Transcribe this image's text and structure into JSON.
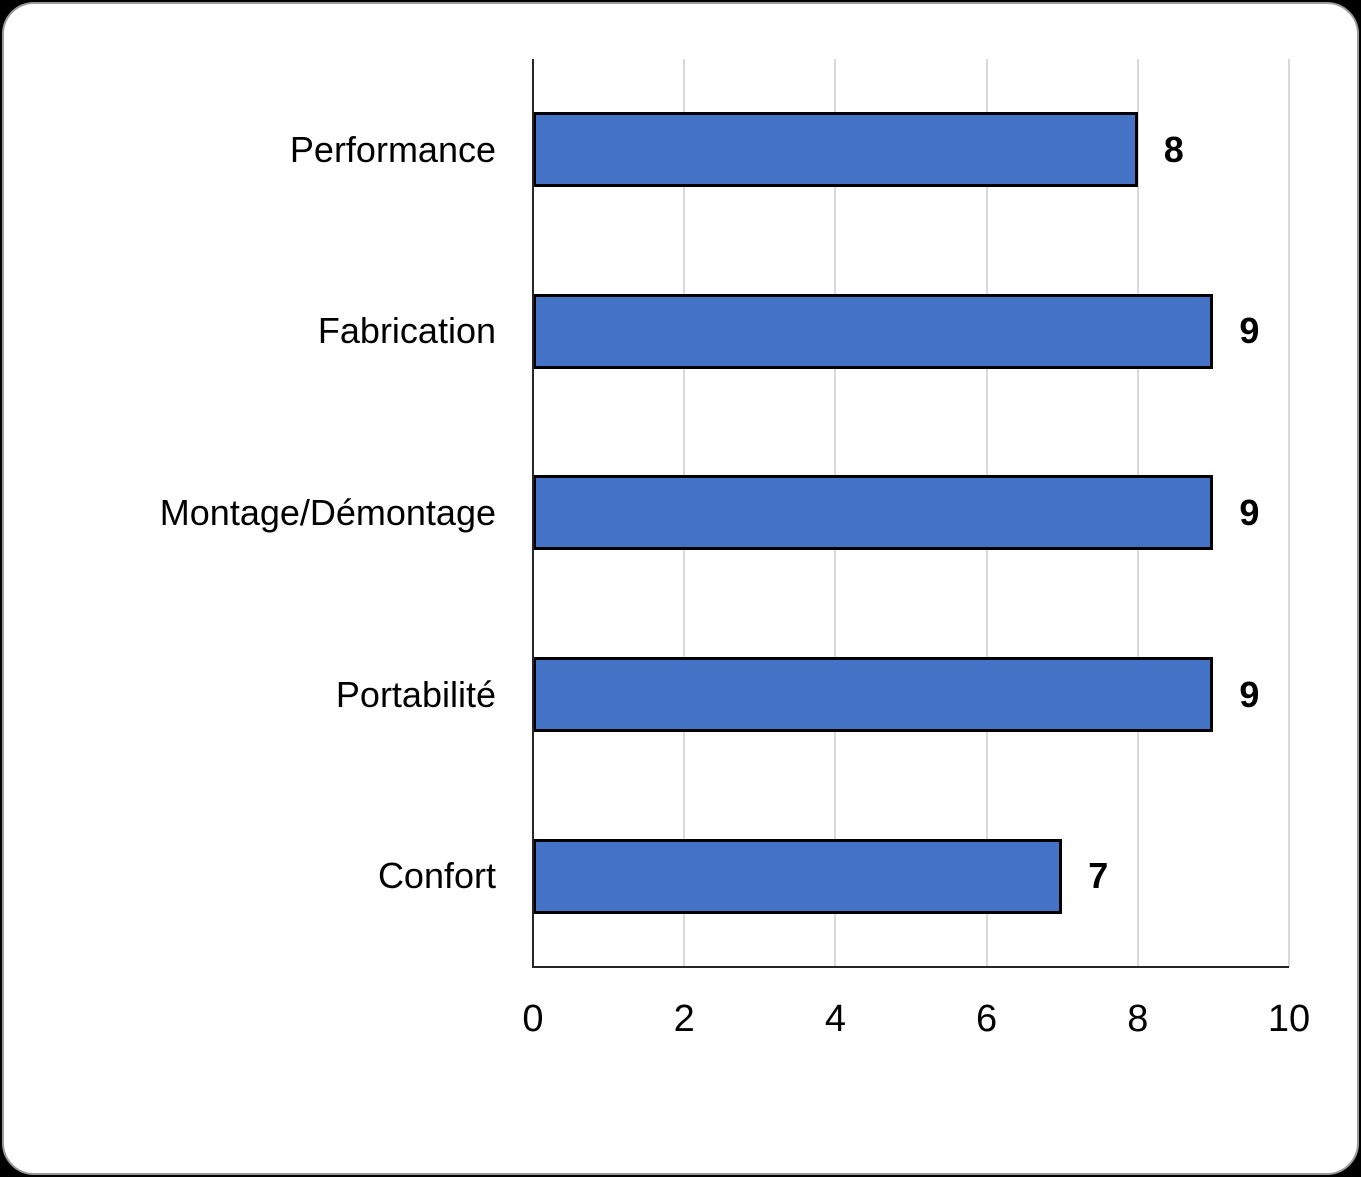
{
  "chart_data": {
    "type": "bar",
    "orientation": "horizontal",
    "title": "",
    "xlabel": "",
    "ylabel": "",
    "categories": [
      "Performance",
      "Fabrication",
      "Montage/Démontage",
      "Portabilité",
      "Confort"
    ],
    "values": [
      8,
      9,
      9,
      9,
      7
    ],
    "data_labels": [
      "8",
      "9",
      "9",
      "9",
      "7"
    ],
    "xlim": [
      0,
      10
    ],
    "x_ticks": [
      0,
      2,
      4,
      6,
      8,
      10
    ],
    "grid": "vertical-only",
    "legend": "none",
    "colors": {
      "bar_fill": "#4472C4",
      "bar_border": "#000000",
      "gridline": "#D9D9D9",
      "axis_line": "#262626",
      "text": "#000000",
      "card_background": "#FFFFFF",
      "card_border": "#9B9B9B",
      "page_background": "#000000"
    }
  }
}
